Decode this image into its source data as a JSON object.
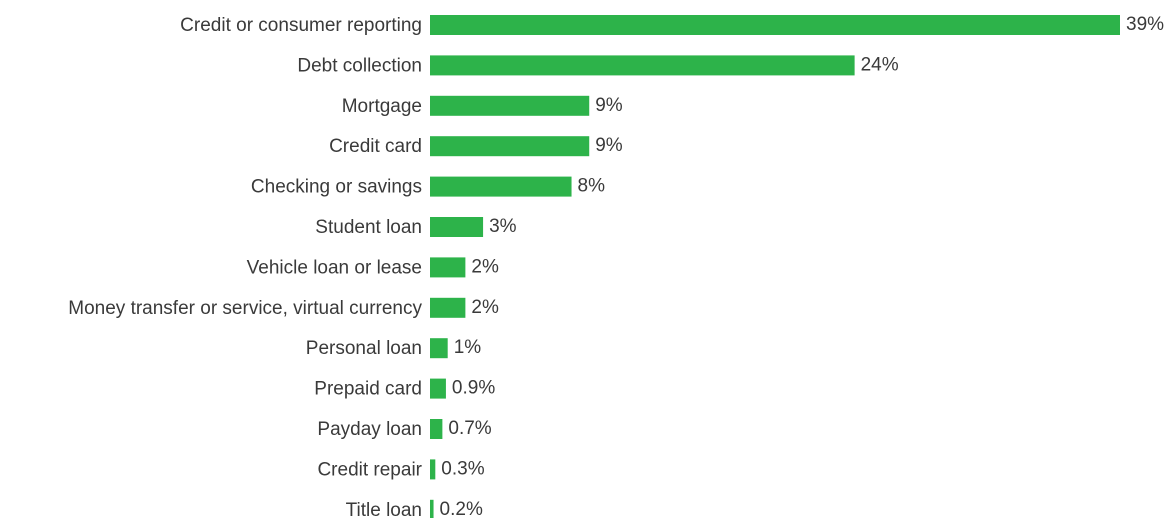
{
  "chart_data": {
    "type": "bar",
    "orientation": "horizontal",
    "color": "#2db34a",
    "categories": [
      "Credit or consumer reporting",
      "Debt collection",
      "Mortgage",
      "Credit card",
      "Checking or savings",
      "Student loan",
      "Vehicle loan or lease",
      "Money transfer or service, virtual currency",
      "Personal loan",
      "Prepaid card",
      "Payday loan",
      "Credit repair",
      "Title loan"
    ],
    "values": [
      39,
      24,
      9,
      9,
      8,
      3,
      2,
      2,
      1,
      0.9,
      0.7,
      0.3,
      0.2
    ],
    "value_labels": [
      "39%",
      "24%",
      "9%",
      "9%",
      "8%",
      "3%",
      "2%",
      "2%",
      "1%",
      "0.9%",
      "0.7%",
      "0.3%",
      "0.2%"
    ]
  }
}
